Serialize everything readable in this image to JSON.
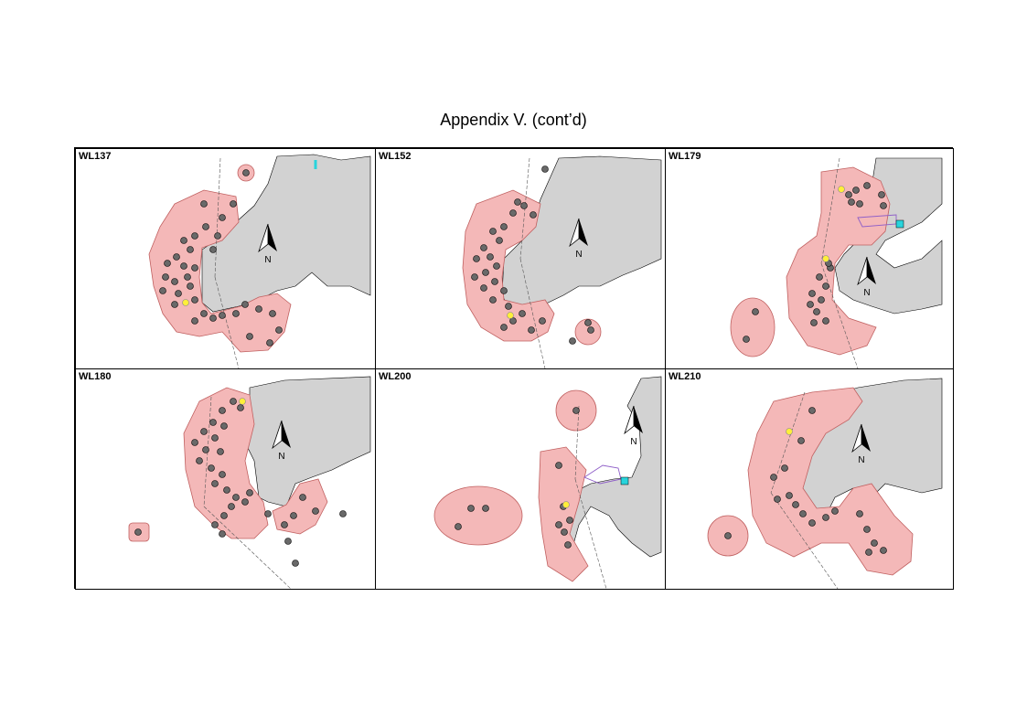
{
  "page": {
    "title": "Appendix V.  (cont’d)"
  },
  "legend_colors": {
    "land": "#d2d2d2",
    "home_range": "#f4b8b8",
    "home_range_edge": "#c06060",
    "location": "#696969",
    "capture_site": "#ffef3a",
    "facility": "#28d4dc",
    "boundary": "#9060c8"
  },
  "north_arrow_label": "N",
  "panels": [
    {
      "id": "WL137",
      "label": "WL137",
      "marker": "north-arrow",
      "label_text": "N"
    },
    {
      "id": "WL152",
      "label": "WL152",
      "marker": "north-arrow",
      "label_text": "N"
    },
    {
      "id": "WL179",
      "label": "WL179",
      "marker": "north-arrow",
      "label_text": "N"
    },
    {
      "id": "WL180",
      "label": "WL180",
      "marker": "north-arrow",
      "label_text": "N"
    },
    {
      "id": "WL200",
      "label": "WL200",
      "marker": "north-arrow",
      "label_text": "N"
    },
    {
      "id": "WL210",
      "label": "WL210",
      "marker": "north-arrow",
      "label_text": "N"
    }
  ]
}
